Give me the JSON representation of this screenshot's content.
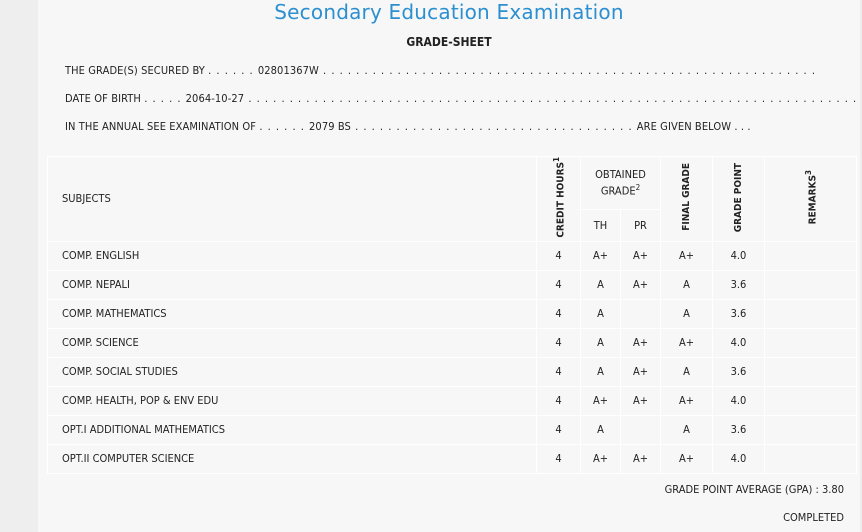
{
  "title": "Secondary Education Examination",
  "subtitle": "GRADE-SHEET",
  "info": {
    "secured_by_label": "THE GRADE(S) SECURED BY",
    "secured_by_value": "02801367W",
    "dob_label": "DATE OF BIRTH",
    "dob_value": "2064-10-27",
    "exam_label": "IN THE ANNUAL SEE EXAMINATION OF",
    "exam_value": "2079 BS",
    "exam_suffix": "ARE GIVEN BELOW . . ."
  },
  "headers": {
    "subjects": "SUBJECTS",
    "credit_hours": "CREDIT HOURS",
    "credit_sup": "1",
    "obtained_grade_line1": "OBTAINED",
    "obtained_grade_line2": "GRADE",
    "obtained_sup": "2",
    "th": "TH",
    "pr": "PR",
    "final_grade": "FINAL GRADE",
    "grade_point": "GRADE POINT",
    "remarks": "REMARKS",
    "remarks_sup": "3"
  },
  "rows": [
    {
      "subject": "COMP. ENGLISH",
      "credit": "4",
      "th": "A+",
      "pr": "A+",
      "final": "A+",
      "gp": "4.0",
      "remarks": ""
    },
    {
      "subject": "COMP. NEPALI",
      "credit": "4",
      "th": "A",
      "pr": "A+",
      "final": "A",
      "gp": "3.6",
      "remarks": ""
    },
    {
      "subject": "COMP. MATHEMATICS",
      "credit": "4",
      "th": "A",
      "pr": "",
      "final": "A",
      "gp": "3.6",
      "remarks": ""
    },
    {
      "subject": "COMP. SCIENCE",
      "credit": "4",
      "th": "A",
      "pr": "A+",
      "final": "A+",
      "gp": "4.0",
      "remarks": ""
    },
    {
      "subject": "COMP. SOCIAL STUDIES",
      "credit": "4",
      "th": "A",
      "pr": "A+",
      "final": "A",
      "gp": "3.6",
      "remarks": ""
    },
    {
      "subject": "COMP. HEALTH, POP & ENV EDU",
      "credit": "4",
      "th": "A+",
      "pr": "A+",
      "final": "A+",
      "gp": "4.0",
      "remarks": ""
    },
    {
      "subject": "OPT.I ADDITIONAL MATHEMATICS",
      "credit": "4",
      "th": "A",
      "pr": "",
      "final": "A",
      "gp": "3.6",
      "remarks": ""
    },
    {
      "subject": "OPT.II COMPUTER SCIENCE",
      "credit": "4",
      "th": "A+",
      "pr": "A+",
      "final": "A+",
      "gp": "4.0",
      "remarks": ""
    }
  ],
  "gpa": "GRADE POINT AVERAGE (GPA) : 3.80",
  "status": "COMPLETED"
}
